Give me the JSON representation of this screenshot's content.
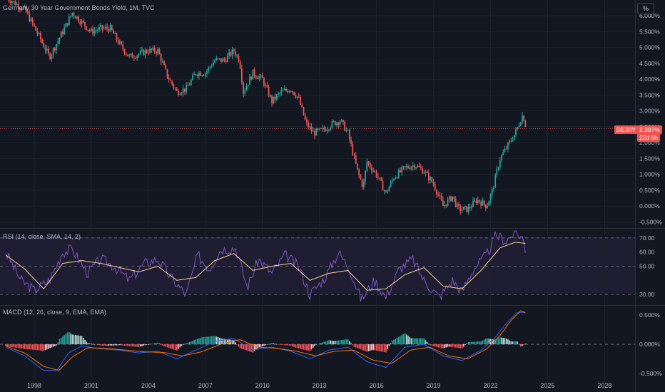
{
  "title": "Germany 30 Year Government Bonds Yield, 1M, TVC",
  "unit_button": "%",
  "symbol_badge": "DE30Y",
  "price_badge": "2.397%",
  "countdown_badge": "22d 8h",
  "rsi_label": "RSI (14, close, SMA, 14, 2)",
  "macd_label": "MACD (12, 26, close, 9, EMA, EMA)",
  "colors": {
    "up": "#26a69a",
    "down": "#ef5350",
    "rsi": "#7e57c2",
    "rsi_ma": "#f7d58b",
    "macd": "#2962ff",
    "signal": "#ff6d00",
    "bg": "#131722",
    "grid": "#1e222d"
  },
  "chart_data": [
    {
      "type": "candlestick",
      "title": "Germany 30 Year Government Bonds Yield, 1M, TVC",
      "x_ticks": [
        "1998",
        "2001",
        "2004",
        "2007",
        "2010",
        "2013",
        "2016",
        "2019",
        "2022",
        "2025",
        "2028"
      ],
      "y_ticks": [
        "-0.500%",
        "0.000%",
        "0.500%",
        "1.000%",
        "1.500%",
        "2.000%",
        "2.500%",
        "3.000%",
        "3.500%",
        "4.000%",
        "4.500%",
        "5.000%",
        "5.500%",
        "6.000%"
      ],
      "ylim": [
        -0.65,
        6.5
      ],
      "last_value": 2.397,
      "series_points": [
        [
          1996.5,
          6.6
        ],
        [
          1997.5,
          6.2
        ],
        [
          1998.3,
          5.3
        ],
        [
          1998.8,
          4.7
        ],
        [
          1999.5,
          5.5
        ],
        [
          2000.0,
          6.1
        ],
        [
          2000.5,
          5.8
        ],
        [
          2001.0,
          5.5
        ],
        [
          2001.5,
          5.6
        ],
        [
          2002.0,
          5.6
        ],
        [
          2002.5,
          5.1
        ],
        [
          2003.0,
          4.7
        ],
        [
          2003.5,
          4.8
        ],
        [
          2004.0,
          4.9
        ],
        [
          2004.5,
          4.9
        ],
        [
          2005.0,
          4.1
        ],
        [
          2005.5,
          3.6
        ],
        [
          2006.0,
          3.7
        ],
        [
          2006.5,
          4.2
        ],
        [
          2007.0,
          4.2
        ],
        [
          2007.5,
          4.6
        ],
        [
          2008.0,
          4.6
        ],
        [
          2008.5,
          4.9
        ],
        [
          2008.8,
          4.6
        ],
        [
          2009.0,
          3.6
        ],
        [
          2009.5,
          4.2
        ],
        [
          2010.0,
          4.0
        ],
        [
          2010.5,
          3.3
        ],
        [
          2011.0,
          3.6
        ],
        [
          2011.5,
          3.7
        ],
        [
          2011.9,
          3.4
        ],
        [
          2012.3,
          2.6
        ],
        [
          2012.7,
          2.3
        ],
        [
          2013.2,
          2.4
        ],
        [
          2013.7,
          2.6
        ],
        [
          2014.1,
          2.7
        ],
        [
          2014.5,
          2.3
        ],
        [
          2015.0,
          1.1
        ],
        [
          2015.3,
          0.6
        ],
        [
          2015.5,
          1.4
        ],
        [
          2016.0,
          1.0
        ],
        [
          2016.5,
          0.4
        ],
        [
          2016.9,
          0.9
        ],
        [
          2017.5,
          1.2
        ],
        [
          2018.0,
          1.3
        ],
        [
          2018.5,
          1.1
        ],
        [
          2019.0,
          0.7
        ],
        [
          2019.5,
          0.0
        ],
        [
          2020.0,
          0.3
        ],
        [
          2020.3,
          -0.1
        ],
        [
          2020.8,
          -0.1
        ],
        [
          2021.3,
          0.2
        ],
        [
          2021.8,
          0.0
        ],
        [
          2022.1,
          0.5
        ],
        [
          2022.5,
          1.5
        ],
        [
          2022.9,
          1.9
        ],
        [
          2023.3,
          2.3
        ],
        [
          2023.7,
          2.9
        ],
        [
          2023.9,
          2.397
        ]
      ]
    },
    {
      "type": "line",
      "title": "RSI (14, close, SMA, 14, 2)",
      "y_ticks": [
        "30.00",
        "50.00",
        "60.00",
        "70.00"
      ],
      "guides": [
        30,
        50,
        70
      ],
      "ylim": [
        24,
        76
      ],
      "series": [
        {
          "name": "RSI",
          "points": [
            [
              1996.5,
              60
            ],
            [
              1997.3,
              40
            ],
            [
              1998.0,
              33
            ],
            [
              1998.8,
              40
            ],
            [
              1999.5,
              60
            ],
            [
              2000.0,
              62
            ],
            [
              2000.8,
              45
            ],
            [
              2001.5,
              55
            ],
            [
              2002.2,
              50
            ],
            [
              2003.0,
              40
            ],
            [
              2003.8,
              52
            ],
            [
              2004.5,
              55
            ],
            [
              2005.3,
              40
            ],
            [
              2006.0,
              30
            ],
            [
              2006.6,
              58
            ],
            [
              2007.2,
              48
            ],
            [
              2007.8,
              62
            ],
            [
              2008.6,
              63
            ],
            [
              2009.2,
              35
            ],
            [
              2009.8,
              55
            ],
            [
              2010.5,
              45
            ],
            [
              2011.2,
              58
            ],
            [
              2011.9,
              50
            ],
            [
              2012.5,
              30
            ],
            [
              2013.3,
              42
            ],
            [
              2014.0,
              60
            ],
            [
              2014.6,
              48
            ],
            [
              2015.2,
              26
            ],
            [
              2015.9,
              40
            ],
            [
              2016.5,
              28
            ],
            [
              2017.2,
              48
            ],
            [
              2017.9,
              55
            ],
            [
              2018.5,
              40
            ],
            [
              2019.3,
              28
            ],
            [
              2020.0,
              40
            ],
            [
              2020.5,
              32
            ],
            [
              2021.1,
              48
            ],
            [
              2021.8,
              58
            ],
            [
              2022.3,
              72
            ],
            [
              2022.8,
              68
            ],
            [
              2023.3,
              74
            ],
            [
              2023.7,
              70
            ],
            [
              2023.9,
              58
            ]
          ]
        },
        {
          "name": "RSI-based MA",
          "points": [
            [
              1996.5,
              58
            ],
            [
              1997.5,
              48
            ],
            [
              1998.5,
              34
            ],
            [
              1999.5,
              52
            ],
            [
              2000.5,
              54
            ],
            [
              2001.5,
              52
            ],
            [
              2002.5,
              49
            ],
            [
              2003.5,
              46
            ],
            [
              2004.5,
              50
            ],
            [
              2005.5,
              40
            ],
            [
              2006.5,
              42
            ],
            [
              2007.5,
              54
            ],
            [
              2008.5,
              59
            ],
            [
              2009.5,
              47
            ],
            [
              2010.5,
              50
            ],
            [
              2011.5,
              52
            ],
            [
              2012.5,
              40
            ],
            [
              2013.5,
              45
            ],
            [
              2014.5,
              47
            ],
            [
              2015.5,
              33
            ],
            [
              2016.5,
              34
            ],
            [
              2017.5,
              44
            ],
            [
              2018.5,
              49
            ],
            [
              2019.5,
              36
            ],
            [
              2020.5,
              34
            ],
            [
              2021.5,
              47
            ],
            [
              2022.5,
              63
            ],
            [
              2023.3,
              67
            ],
            [
              2023.9,
              66
            ]
          ]
        }
      ]
    },
    {
      "type": "bar+line",
      "title": "MACD (12, 26, close, 9, EMA, EMA)",
      "y_ticks": [
        "-0.500%",
        "0.000%",
        "0.500%"
      ],
      "ylim": [
        -0.6,
        0.65
      ],
      "series": [
        {
          "name": "MACD",
          "points": [
            [
              1996.5,
              -0.05
            ],
            [
              1997.5,
              -0.2
            ],
            [
              1998.5,
              -0.45
            ],
            [
              1999.2,
              -0.45
            ],
            [
              1999.8,
              -0.15
            ],
            [
              2000.5,
              -0.03
            ],
            [
              2001.5,
              -0.08
            ],
            [
              2002.5,
              -0.1
            ],
            [
              2003.5,
              -0.15
            ],
            [
              2004.5,
              -0.12
            ],
            [
              2005.5,
              -0.25
            ],
            [
              2006.5,
              -0.1
            ],
            [
              2007.5,
              0.05
            ],
            [
              2008.5,
              0.1
            ],
            [
              2009.5,
              -0.1
            ],
            [
              2010.5,
              -0.05
            ],
            [
              2011.5,
              -0.12
            ],
            [
              2012.5,
              -0.25
            ],
            [
              2013.5,
              -0.1
            ],
            [
              2014.5,
              -0.05
            ],
            [
              2015.5,
              -0.3
            ],
            [
              2016.5,
              -0.4
            ],
            [
              2017.5,
              -0.05
            ],
            [
              2018.5,
              0.0
            ],
            [
              2019.5,
              -0.2
            ],
            [
              2020.5,
              -0.28
            ],
            [
              2021.5,
              -0.1
            ],
            [
              2022.2,
              0.1
            ],
            [
              2022.8,
              0.35
            ],
            [
              2023.4,
              0.55
            ],
            [
              2023.9,
              0.55
            ]
          ]
        },
        {
          "name": "Signal",
          "points": [
            [
              1996.5,
              -0.03
            ],
            [
              1997.5,
              -0.15
            ],
            [
              1998.5,
              -0.38
            ],
            [
              1999.3,
              -0.45
            ],
            [
              2000.0,
              -0.22
            ],
            [
              2000.8,
              -0.06
            ],
            [
              2001.8,
              -0.07
            ],
            [
              2002.8,
              -0.1
            ],
            [
              2003.8,
              -0.13
            ],
            [
              2004.8,
              -0.14
            ],
            [
              2005.8,
              -0.2
            ],
            [
              2006.8,
              -0.13
            ],
            [
              2007.8,
              0.0
            ],
            [
              2008.8,
              0.08
            ],
            [
              2009.8,
              -0.05
            ],
            [
              2010.8,
              -0.07
            ],
            [
              2011.8,
              -0.12
            ],
            [
              2012.8,
              -0.2
            ],
            [
              2013.8,
              -0.12
            ],
            [
              2014.8,
              -0.1
            ],
            [
              2015.8,
              -0.27
            ],
            [
              2016.8,
              -0.33
            ],
            [
              2017.8,
              -0.1
            ],
            [
              2018.8,
              -0.05
            ],
            [
              2019.8,
              -0.2
            ],
            [
              2020.8,
              -0.25
            ],
            [
              2021.8,
              -0.08
            ],
            [
              2022.5,
              0.15
            ],
            [
              2023.1,
              0.42
            ],
            [
              2023.6,
              0.58
            ],
            [
              2023.9,
              0.53
            ]
          ]
        }
      ]
    }
  ]
}
